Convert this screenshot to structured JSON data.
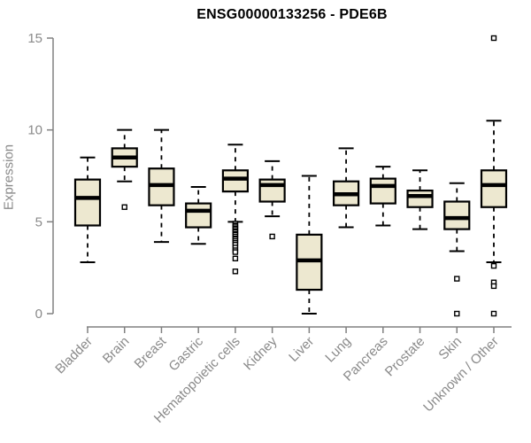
{
  "chart_data": {
    "type": "boxplot",
    "title": "ENSG00000133256 - PDE6B",
    "ylabel": "Expression",
    "xlabel": "",
    "ylim": [
      0,
      15
    ],
    "yticks": [
      0,
      5,
      10,
      15
    ],
    "grid": false,
    "legend": "none",
    "colors": {
      "box_fill": "#ede8d0",
      "box_stroke": "#000000",
      "axis_line": "#808080",
      "tick_label": "#8a8a8a",
      "title": "#000000",
      "background": "#ffffff"
    },
    "categories": [
      "Bladder",
      "Brain",
      "Breast",
      "Gastric",
      "Hematopoietic cells",
      "Kidney",
      "Liver",
      "Lung",
      "Pancreas",
      "Prostate",
      "Skin",
      "Unknown / Other"
    ],
    "boxes": [
      {
        "name": "Bladder",
        "low": 2.8,
        "q1": 4.8,
        "median": 6.3,
        "q3": 7.3,
        "high": 8.5,
        "outliers": []
      },
      {
        "name": "Brain",
        "low": 7.2,
        "q1": 8.0,
        "median": 8.5,
        "q3": 9.0,
        "high": 10.0,
        "outliers": [
          5.8
        ]
      },
      {
        "name": "Breast",
        "low": 3.9,
        "q1": 5.9,
        "median": 7.0,
        "q3": 7.9,
        "high": 10.0,
        "outliers": []
      },
      {
        "name": "Gastric",
        "low": 3.8,
        "q1": 4.7,
        "median": 5.6,
        "q3": 6.0,
        "high": 6.9,
        "outliers": []
      },
      {
        "name": "Hematopoietic cells",
        "low": 5.0,
        "q1": 6.65,
        "median": 7.35,
        "q3": 7.8,
        "high": 9.2,
        "outliers": [
          4.9,
          4.8,
          4.75,
          4.65,
          4.6,
          4.5,
          4.45,
          4.35,
          4.3,
          4.2,
          4.1,
          4.05,
          3.95,
          3.85,
          3.75,
          3.6,
          3.45,
          3.35,
          3.0,
          2.3
        ]
      },
      {
        "name": "Kidney",
        "low": 5.3,
        "q1": 6.1,
        "median": 7.0,
        "q3": 7.3,
        "high": 8.3,
        "outliers": [
          4.2
        ]
      },
      {
        "name": "Liver",
        "low": 0.0,
        "q1": 1.3,
        "median": 2.9,
        "q3": 4.3,
        "high": 7.5,
        "outliers": []
      },
      {
        "name": "Lung",
        "low": 4.7,
        "q1": 5.9,
        "median": 6.5,
        "q3": 7.2,
        "high": 9.0,
        "outliers": []
      },
      {
        "name": "Pancreas",
        "low": 4.8,
        "q1": 6.0,
        "median": 6.95,
        "q3": 7.35,
        "high": 8.0,
        "outliers": []
      },
      {
        "name": "Prostate",
        "low": 4.6,
        "q1": 5.8,
        "median": 6.4,
        "q3": 6.7,
        "high": 7.8,
        "outliers": []
      },
      {
        "name": "Skin",
        "low": 3.4,
        "q1": 4.6,
        "median": 5.2,
        "q3": 6.1,
        "high": 7.1,
        "outliers": [
          1.9,
          0.0
        ]
      },
      {
        "name": "Unknown / Other",
        "low": 2.8,
        "q1": 5.8,
        "median": 7.0,
        "q3": 7.8,
        "high": 10.5,
        "outliers": [
          15.0,
          2.6,
          1.7,
          1.5,
          0.0
        ]
      }
    ]
  }
}
